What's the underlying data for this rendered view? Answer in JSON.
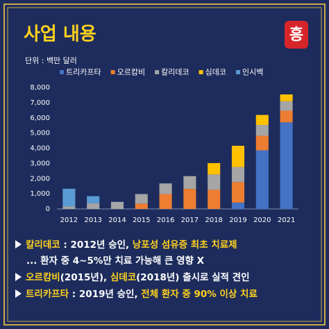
{
  "title": "사업 내용",
  "logo": "흥",
  "chart_data": {
    "type": "bar",
    "stacked": true,
    "unit": "단위 : 백만 달러",
    "categories": [
      "2012",
      "2013",
      "2014",
      "2015",
      "2016",
      "2017",
      "2018",
      "2019",
      "2020",
      "2021"
    ],
    "series": [
      {
        "name": "트리카프타",
        "color": "#4472c4",
        "values": [
          0,
          0,
          0,
          0,
          0,
          0,
          0,
          420,
          3860,
          5700
        ]
      },
      {
        "name": "오르캄비",
        "color": "#ed7d31",
        "values": [
          0,
          0,
          0,
          350,
          980,
          1320,
          1260,
          1350,
          960,
          770
        ]
      },
      {
        "name": "칼리데코",
        "color": "#a5a5a5",
        "values": [
          170,
          370,
          460,
          630,
          700,
          840,
          1010,
          990,
          710,
          620
        ]
      },
      {
        "name": "심데코",
        "color": "#ffc000",
        "values": [
          0,
          0,
          0,
          0,
          0,
          0,
          750,
          1400,
          660,
          450
        ]
      },
      {
        "name": "인시백",
        "color": "#5b9bd5",
        "values": [
          1160,
          470,
          10,
          0,
          0,
          0,
          0,
          0,
          0,
          0
        ]
      }
    ],
    "ylim": [
      0,
      8000
    ],
    "yticks": [
      0,
      {
        "value": 1000,
        "label": "1,000"
      },
      {
        "value": 2000,
        "label": "2,000"
      },
      {
        "value": 3000,
        "label": "3,000"
      },
      {
        "value": 4000,
        "label": "4,000"
      },
      {
        "value": 5000,
        "label": "5,000"
      },
      {
        "value": 6000,
        "label": "6,000"
      },
      {
        "value": 7000,
        "label": "7,000"
      },
      {
        "value": 8000,
        "label": "8,000"
      }
    ],
    "grid": false
  },
  "notes": [
    {
      "bullet": true,
      "segments": [
        {
          "text": "칼리데코",
          "highlight": true
        },
        {
          "text": " : 2012년 승인, ",
          "highlight": false
        },
        {
          "text": "낭포성 섬유증 최초 치료제",
          "highlight": true
        }
      ]
    },
    {
      "bullet": false,
      "segments": [
        {
          "text": "... 환자 중 4~5%만 치료 가능해 큰 영향 X",
          "highlight": false
        }
      ]
    },
    {
      "bullet": true,
      "segments": [
        {
          "text": "오르캄비",
          "highlight": true
        },
        {
          "text": "(2015년), ",
          "highlight": false
        },
        {
          "text": "심데코",
          "highlight": true
        },
        {
          "text": "(2018년) 출시로 실적 견인",
          "highlight": false
        }
      ]
    },
    {
      "bullet": true,
      "segments": [
        {
          "text": "트리카프타",
          "highlight": true
        },
        {
          "text": " : 2019년 승인, ",
          "highlight": false
        },
        {
          "text": "전체 환자 중 90% 이상 치료",
          "highlight": true
        }
      ]
    }
  ]
}
